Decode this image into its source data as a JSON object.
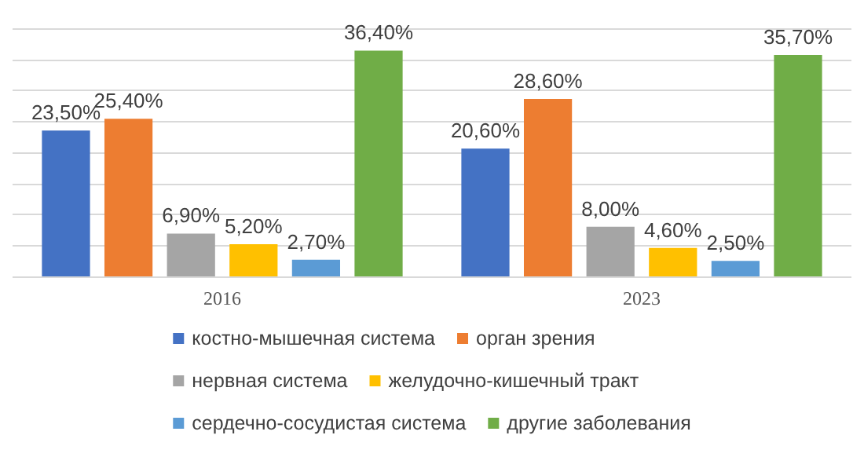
{
  "chart_data": {
    "type": "bar",
    "categories": [
      "2016",
      "2023"
    ],
    "series": [
      {
        "name": "костно-мышечная система",
        "color": "#4472c4",
        "values": [
          23.5,
          20.6
        ],
        "value_labels": [
          "23,50%",
          "20,60%"
        ]
      },
      {
        "name": "орган зрения",
        "color": "#ed7d31",
        "values": [
          25.4,
          28.6
        ],
        "value_labels": [
          "25,40%",
          "28,60%"
        ]
      },
      {
        "name": "нервная система",
        "color": "#a5a5a5",
        "values": [
          6.9,
          8.0
        ],
        "value_labels": [
          "6,90%",
          "8,00%"
        ]
      },
      {
        "name": "желудочно-кишечный тракт",
        "color": "#ffc000",
        "values": [
          5.2,
          4.6
        ],
        "value_labels": [
          "5,20%",
          "4,60%"
        ]
      },
      {
        "name": "сердечно-сосудистая система",
        "color": "#5b9bd5",
        "values": [
          2.7,
          2.5
        ],
        "value_labels": [
          "2,70%",
          "2,50%"
        ]
      },
      {
        "name": "другие заболевания",
        "color": "#70ad47",
        "values": [
          36.4,
          35.7
        ],
        "value_labels": [
          "36,40%",
          "35,70%"
        ]
      }
    ],
    "ylim": [
      0,
      40
    ],
    "yticks": [
      {
        "value": 0,
        "label": null
      },
      {
        "value": 5,
        "label": null
      },
      {
        "value": 10,
        "label": null
      },
      {
        "value": 15,
        "label": null
      },
      {
        "value": 20,
        "label": null
      },
      {
        "value": 25,
        "label": null
      },
      {
        "value": 30,
        "label": null
      },
      {
        "value": 35,
        "label": null
      },
      {
        "value": 40,
        "label": null
      }
    ],
    "tick_labels": "x",
    "grid": "y",
    "legend": "bottom"
  }
}
